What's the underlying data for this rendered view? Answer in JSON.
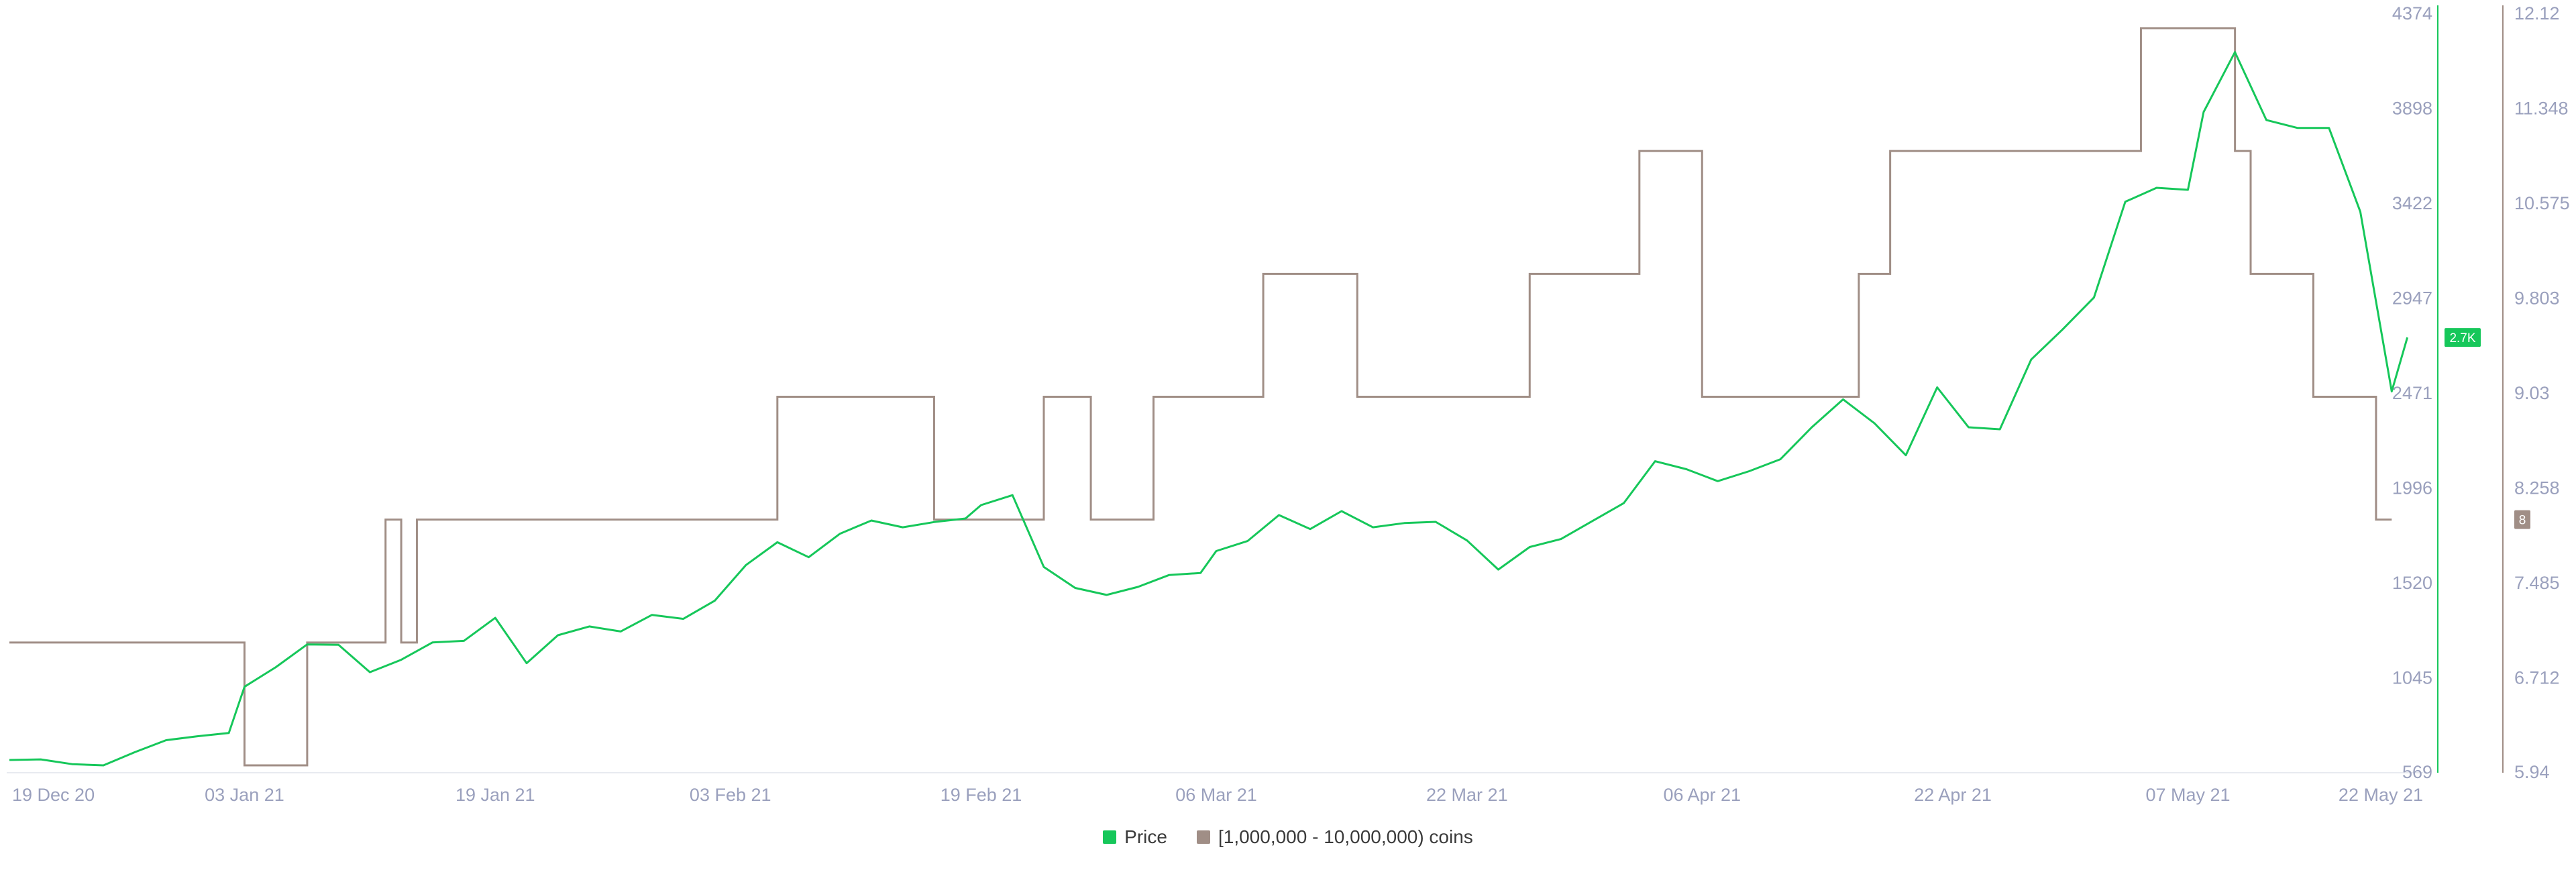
{
  "colors": {
    "price": "#16c75a",
    "holders": "#a08e86",
    "axis_text": "#9aa0bd"
  },
  "legend": {
    "price_label": "Price",
    "holders_label": "[1,000,000 - 10,000,000) coins"
  },
  "badges": {
    "price_value": "2.7K",
    "holders_value": "8"
  },
  "chart_data": {
    "type": "line",
    "x_ticks": [
      "19 Dec 20",
      "03 Jan 21",
      "19 Jan 21",
      "03 Feb 21",
      "19 Feb 21",
      "06 Mar 21",
      "22 Mar 21",
      "06 Apr 21",
      "22 Apr 21",
      "07 May 21",
      "22 May 21"
    ],
    "x_range": [
      "2020-12-19",
      "2021-05-22"
    ],
    "y_left": {
      "ticks": [
        "569",
        "1045",
        "1520",
        "1996",
        "2471",
        "2947",
        "3422",
        "3898",
        "4374"
      ],
      "range": [
        569,
        4374
      ]
    },
    "y_right": {
      "ticks": [
        "5.94",
        "6.712",
        "7.485",
        "8.258",
        "9.03",
        "9.803",
        "10.575",
        "11.348",
        "12.12"
      ],
      "range": [
        5.94,
        12.12
      ]
    },
    "series": [
      {
        "name": "Price",
        "axis": "left",
        "points": [
          [
            "2020-12-19",
            633
          ],
          [
            "2020-12-21",
            636
          ],
          [
            "2020-12-23",
            612
          ],
          [
            "2020-12-25",
            606
          ],
          [
            "2020-12-27",
            672
          ],
          [
            "2020-12-29",
            732
          ],
          [
            "2020-12-31",
            752
          ],
          [
            "2021-01-02",
            768
          ],
          [
            "2021-01-03",
            1000
          ],
          [
            "2021-01-05",
            1098
          ],
          [
            "2021-01-07",
            1212
          ],
          [
            "2021-01-09",
            1210
          ],
          [
            "2021-01-11",
            1073
          ],
          [
            "2021-01-13",
            1135
          ],
          [
            "2021-01-15",
            1222
          ],
          [
            "2021-01-17",
            1230
          ],
          [
            "2021-01-19",
            1345
          ],
          [
            "2021-01-21",
            1118
          ],
          [
            "2021-01-23",
            1258
          ],
          [
            "2021-01-25",
            1302
          ],
          [
            "2021-01-27",
            1277
          ],
          [
            "2021-01-29",
            1360
          ],
          [
            "2021-01-31",
            1340
          ],
          [
            "2021-02-02",
            1431
          ],
          [
            "2021-02-04",
            1610
          ],
          [
            "2021-02-06",
            1724
          ],
          [
            "2021-02-08",
            1649
          ],
          [
            "2021-02-10",
            1767
          ],
          [
            "2021-02-12",
            1833
          ],
          [
            "2021-02-14",
            1799
          ],
          [
            "2021-02-16",
            1825
          ],
          [
            "2021-02-18",
            1843
          ],
          [
            "2021-02-19",
            1910
          ],
          [
            "2021-02-21",
            1960
          ],
          [
            "2021-02-23",
            1600
          ],
          [
            "2021-02-25",
            1495
          ],
          [
            "2021-02-27",
            1460
          ],
          [
            "2021-03-01",
            1500
          ],
          [
            "2021-03-03",
            1560
          ],
          [
            "2021-03-05",
            1570
          ],
          [
            "2021-03-06",
            1680
          ],
          [
            "2021-03-08",
            1730
          ],
          [
            "2021-03-10",
            1860
          ],
          [
            "2021-03-12",
            1790
          ],
          [
            "2021-03-14",
            1880
          ],
          [
            "2021-03-16",
            1799
          ],
          [
            "2021-03-18",
            1820
          ],
          [
            "2021-03-20",
            1826
          ],
          [
            "2021-03-22",
            1733
          ],
          [
            "2021-03-24",
            1587
          ],
          [
            "2021-03-26",
            1700
          ],
          [
            "2021-03-28",
            1740
          ],
          [
            "2021-03-30",
            1830
          ],
          [
            "2021-04-01",
            1920
          ],
          [
            "2021-04-03",
            2130
          ],
          [
            "2021-04-05",
            2090
          ],
          [
            "2021-04-07",
            2030
          ],
          [
            "2021-04-09",
            2080
          ],
          [
            "2021-04-11",
            2140
          ],
          [
            "2021-04-13",
            2300
          ],
          [
            "2021-04-15",
            2440
          ],
          [
            "2021-04-17",
            2320
          ],
          [
            "2021-04-19",
            2160
          ],
          [
            "2021-04-21",
            2500
          ],
          [
            "2021-04-23",
            2300
          ],
          [
            "2021-04-25",
            2290
          ],
          [
            "2021-04-27",
            2640
          ],
          [
            "2021-04-29",
            2790
          ],
          [
            "2021-05-01",
            2950
          ],
          [
            "2021-05-03",
            3430
          ],
          [
            "2021-05-05",
            3500
          ],
          [
            "2021-05-07",
            3490
          ],
          [
            "2021-05-08",
            3880
          ],
          [
            "2021-05-10",
            4180
          ],
          [
            "2021-05-12",
            3840
          ],
          [
            "2021-05-14",
            3800
          ],
          [
            "2021-05-16",
            3800
          ],
          [
            "2021-05-18",
            3380
          ],
          [
            "2021-05-20",
            2480
          ],
          [
            "2021-05-21",
            2750
          ]
        ]
      },
      {
        "name": "[1,000,000 - 10,000,000) coins",
        "axis": "right",
        "step": true,
        "points": [
          [
            "2020-12-19",
            7.0
          ],
          [
            "2021-01-03",
            6.0
          ],
          [
            "2021-01-07",
            7.0
          ],
          [
            "2021-01-12",
            8.0
          ],
          [
            "2021-01-13",
            7.0
          ],
          [
            "2021-01-14",
            8.0
          ],
          [
            "2021-02-06",
            9.0
          ],
          [
            "2021-02-16",
            8.0
          ],
          [
            "2021-02-23",
            9.0
          ],
          [
            "2021-02-26",
            8.0
          ],
          [
            "2021-03-02",
            9.0
          ],
          [
            "2021-03-09",
            10.0
          ],
          [
            "2021-03-15",
            9.0
          ],
          [
            "2021-03-26",
            10.0
          ],
          [
            "2021-04-02",
            11.0
          ],
          [
            "2021-04-06",
            9.0
          ],
          [
            "2021-04-16",
            10.0
          ],
          [
            "2021-04-18",
            11.0
          ],
          [
            "2021-05-04",
            12.0
          ],
          [
            "2021-05-10",
            11.0
          ],
          [
            "2021-05-11",
            10.0
          ],
          [
            "2021-05-15",
            9.0
          ],
          [
            "2021-05-19",
            8.0
          ],
          [
            "2021-05-20",
            8.0
          ]
        ]
      }
    ]
  }
}
